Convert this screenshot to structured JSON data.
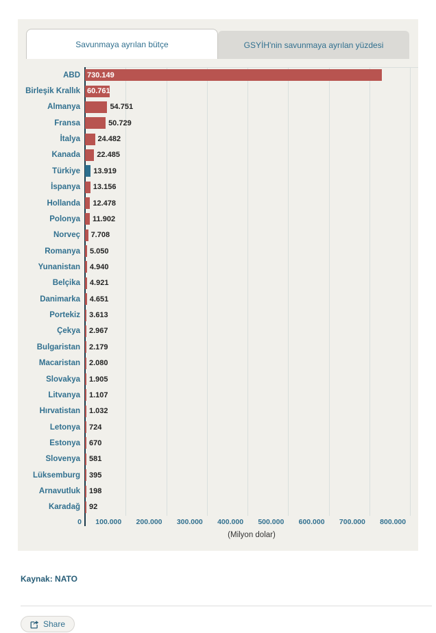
{
  "tabs": [
    {
      "label": "Savunmaya ayrılan bütçe",
      "active": true
    },
    {
      "label": "GSYİH'nin savunmaya ayrılan yüzdesi",
      "active": false
    }
  ],
  "chart_data": {
    "type": "bar",
    "orientation": "horizontal",
    "categories": [
      "ABD",
      "Birleşik Krallık",
      "Almanya",
      "Fransa",
      "İtalya",
      "Kanada",
      "Türkiye",
      "İspanya",
      "Hollanda",
      "Polonya",
      "Norveç",
      "Romanya",
      "Yunanistan",
      "Belçika",
      "Danimarka",
      "Portekiz",
      "Çekya",
      "Bulgaristan",
      "Macaristan",
      "Slovakya",
      "Litvanya",
      "Hırvatistan",
      "Letonya",
      "Estonya",
      "Slovenya",
      "Lüksemburg",
      "Arnavutluk",
      "Karadağ"
    ],
    "values": [
      730149,
      60761,
      54751,
      50729,
      24482,
      22485,
      13919,
      13156,
      12478,
      11902,
      7708,
      5050,
      4940,
      4921,
      4651,
      3613,
      2967,
      2179,
      2080,
      1905,
      1107,
      1032,
      724,
      670,
      581,
      395,
      198,
      92
    ],
    "value_labels": [
      "730.149",
      "60.761",
      "54.751",
      "50.729",
      "24.482",
      "22.485",
      "13.919",
      "13.156",
      "12.478",
      "11.902",
      "7.708",
      "5.050",
      "4.940",
      "4.921",
      "4.651",
      "3.613",
      "2.967",
      "2.179",
      "2.080",
      "1.905",
      "1.107",
      "1.032",
      "724",
      "670",
      "581",
      "395",
      "198",
      "92"
    ],
    "xlabel": "(Milyon dolar)",
    "x_ticks": [
      {
        "value": 0,
        "label": "0"
      },
      {
        "value": 100000,
        "label": "100.000"
      },
      {
        "value": 200000,
        "label": "200.000"
      },
      {
        "value": 300000,
        "label": "300.000"
      },
      {
        "value": 400000,
        "label": "400.000"
      },
      {
        "value": 500000,
        "label": "500.000"
      },
      {
        "value": 600000,
        "label": "600.000"
      },
      {
        "value": 700000,
        "label": "700.000"
      },
      {
        "value": 800000,
        "label": "800.000"
      }
    ],
    "xlim": [
      0,
      820000
    ],
    "grid": "vertical",
    "legend": "none",
    "highlight_category": "Türkiye",
    "colors": {
      "bar": "#b85450",
      "highlight": "#2c6e8d",
      "axis_line": "#1c3a4a",
      "gridline": "#d9dfdd",
      "category_label": "#31708f",
      "value_inside": "#ffffff",
      "value_outside": "#222222"
    }
  },
  "footer": {
    "source_label": "Kaynak: NATO"
  },
  "share": {
    "label": "Share"
  }
}
